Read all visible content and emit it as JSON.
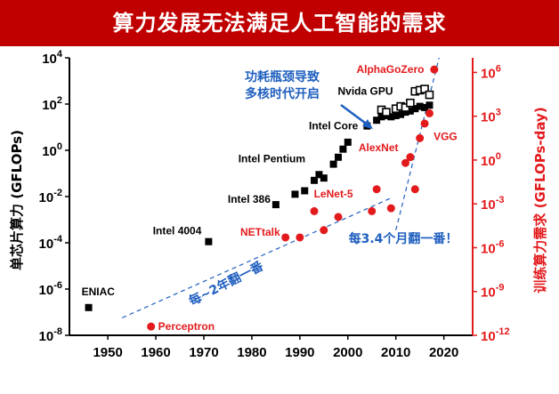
{
  "header": {
    "title": "算力发展无法满足人工智能的需求"
  },
  "colors": {
    "banner": "#c00000",
    "gpu_series": "#000000",
    "ai_series": "#e31a1c",
    "annotation_blue": "#1f5fbf"
  },
  "chart_data": {
    "type": "scatter",
    "x_axis": {
      "min": 1942,
      "max": 2026,
      "ticks": [
        1950,
        1960,
        1970,
        1980,
        1990,
        2000,
        2010,
        2020
      ]
    },
    "y_left": {
      "label": "单芯片算力 (GFLOPs)",
      "scale": "log",
      "min_exp": -8,
      "max_exp": 4,
      "ticks": [
        {
          "exp": -8,
          "base": "10",
          "sup": "-8"
        },
        {
          "exp": -6,
          "base": "10",
          "sup": "-6"
        },
        {
          "exp": -4,
          "base": "10",
          "sup": "-4"
        },
        {
          "exp": -2,
          "base": "10",
          "sup": "-2"
        },
        {
          "exp": 0,
          "base": "10",
          "sup": "0"
        },
        {
          "exp": 2,
          "base": "10",
          "sup": "2"
        },
        {
          "exp": 4,
          "base": "10",
          "sup": "4"
        }
      ]
    },
    "y_right": {
      "label": "训练算力需求 (GFLOPs-day)",
      "scale": "log",
      "min_exp": -12,
      "max_exp": 7,
      "ticks": [
        {
          "exp": -12,
          "base": "10",
          "sup": "-12"
        },
        {
          "exp": -9,
          "base": "10",
          "sup": "-9"
        },
        {
          "exp": -6,
          "base": "10",
          "sup": "-6"
        },
        {
          "exp": -3,
          "base": "10",
          "sup": "-3"
        },
        {
          "exp": 0,
          "base": "10",
          "sup": "0"
        },
        {
          "exp": 3,
          "base": "10",
          "sup": "3"
        },
        {
          "exp": 6,
          "base": "10",
          "sup": "6"
        }
      ]
    },
    "series": [
      {
        "axis": "left",
        "marker": "filled-square",
        "points": [
          [
            1946,
            -6.8
          ],
          [
            1971,
            -3.95
          ],
          [
            1985,
            -2.35
          ],
          [
            1989,
            -1.9
          ],
          [
            1991,
            -1.75
          ],
          [
            1993,
            -1.3
          ],
          [
            1994,
            -1.05
          ],
          [
            1995,
            -1.2
          ],
          [
            1997,
            -0.6
          ],
          [
            1998,
            -0.3
          ],
          [
            1999,
            0.05
          ],
          [
            2000,
            0.35
          ],
          [
            2004,
            1.05
          ],
          [
            2006,
            1.3
          ],
          [
            2007,
            1.45
          ],
          [
            2008,
            1.5
          ],
          [
            2009,
            1.45
          ],
          [
            2010,
            1.5
          ],
          [
            2011,
            1.55
          ],
          [
            2012,
            1.65
          ],
          [
            2013,
            1.7
          ],
          [
            2014,
            1.8
          ],
          [
            2015,
            1.9
          ],
          [
            2016,
            1.85
          ],
          [
            2017,
            1.95
          ]
        ]
      },
      {
        "axis": "left",
        "marker": "open-square",
        "points": [
          [
            2007,
            1.75
          ],
          [
            2008,
            1.65
          ],
          [
            2010,
            1.8
          ],
          [
            2011,
            1.9
          ],
          [
            2012,
            1.85
          ],
          [
            2013,
            2.05
          ],
          [
            2014,
            2.55
          ],
          [
            2015,
            2.6
          ],
          [
            2016,
            2.65
          ],
          [
            2017,
            2.4
          ]
        ]
      },
      {
        "axis": "right",
        "marker": "circle",
        "points": [
          [
            1959,
            -11.4
          ],
          [
            1987,
            -5.3
          ],
          [
            1990,
            -5.3
          ],
          [
            1993,
            -3.5
          ],
          [
            1995,
            -4.8
          ],
          [
            1998,
            -3.9
          ],
          [
            2005,
            -3.5
          ],
          [
            2006,
            -2.0
          ],
          [
            2009,
            -3.3
          ],
          [
            2012,
            -0.2
          ],
          [
            2013,
            0.2
          ],
          [
            2014,
            -2.0
          ],
          [
            2015,
            1.5
          ],
          [
            2016,
            2.5
          ],
          [
            2017,
            3.2
          ],
          [
            2018,
            6.2
          ]
        ]
      }
    ],
    "point_labels": {
      "eniac": "ENIAC",
      "intel4004": "Intel 4004",
      "intel386": "Intel 386",
      "intelpentium": "Intel Pentium",
      "intelcore": "Intel Core",
      "nvidiagpu": "Nvida GPU",
      "perceptron": "Perceptron",
      "nettalk": "NETtalk",
      "lenet5": "LeNet-5",
      "alexnet": "AlexNet",
      "vgg": "VGG",
      "alphagozero": "AlphaGoZero"
    },
    "annotations": {
      "multicore_line1": "功耗瓶颈导致",
      "multicore_line2": "多核时代开启",
      "trend_early": "每~2年翻一番",
      "trend_late": "每3.4个月翻一番！"
    },
    "trend_lines": [
      {
        "axis": "right",
        "from": [
          1953,
          -10.8
        ],
        "to": [
          2009,
          -2.6
        ]
      },
      {
        "axis": "right",
        "from": [
          2010,
          -4.8
        ],
        "to": [
          2019,
          7.0
        ]
      }
    ]
  }
}
